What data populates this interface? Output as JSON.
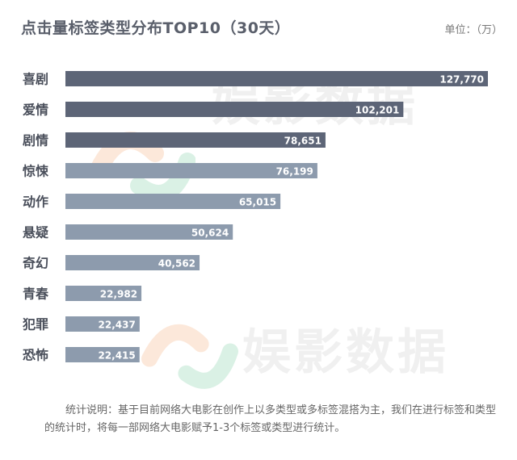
{
  "chart_data": {
    "type": "bar",
    "orientation": "horizontal",
    "title": "点击量标签类型分布TOP10（30天）",
    "unit": "单位：（万）",
    "categories": [
      "喜剧",
      "爱情",
      "剧情",
      "惊悚",
      "动作",
      "悬疑",
      "奇幻",
      "青春",
      "犯罪",
      "恐怖"
    ],
    "values": [
      127770,
      102201,
      78651,
      76199,
      65015,
      50624,
      40562,
      22982,
      22437,
      22415
    ],
    "value_labels": [
      "127,770",
      "102,201",
      "78,651",
      "76,199",
      "65,015",
      "50,624",
      "40,562",
      "22,982",
      "22,437",
      "22,415"
    ],
    "colors": [
      "#5d6577",
      "#5d6577",
      "#5d6577",
      "#8d9bad",
      "#8d9bad",
      "#8d9bad",
      "#8d9bad",
      "#8d9bad",
      "#8d9bad",
      "#8d9bad"
    ],
    "xlim": [
      0,
      127770
    ]
  },
  "watermark": "娱影数据",
  "note": "统计说明：基于目前网络大电影在创作上以多类型或多标签混搭为主，我们在进行标签和类型的统计时，将每一部网络大电影赋予1-3个标签或类型进行统计。"
}
